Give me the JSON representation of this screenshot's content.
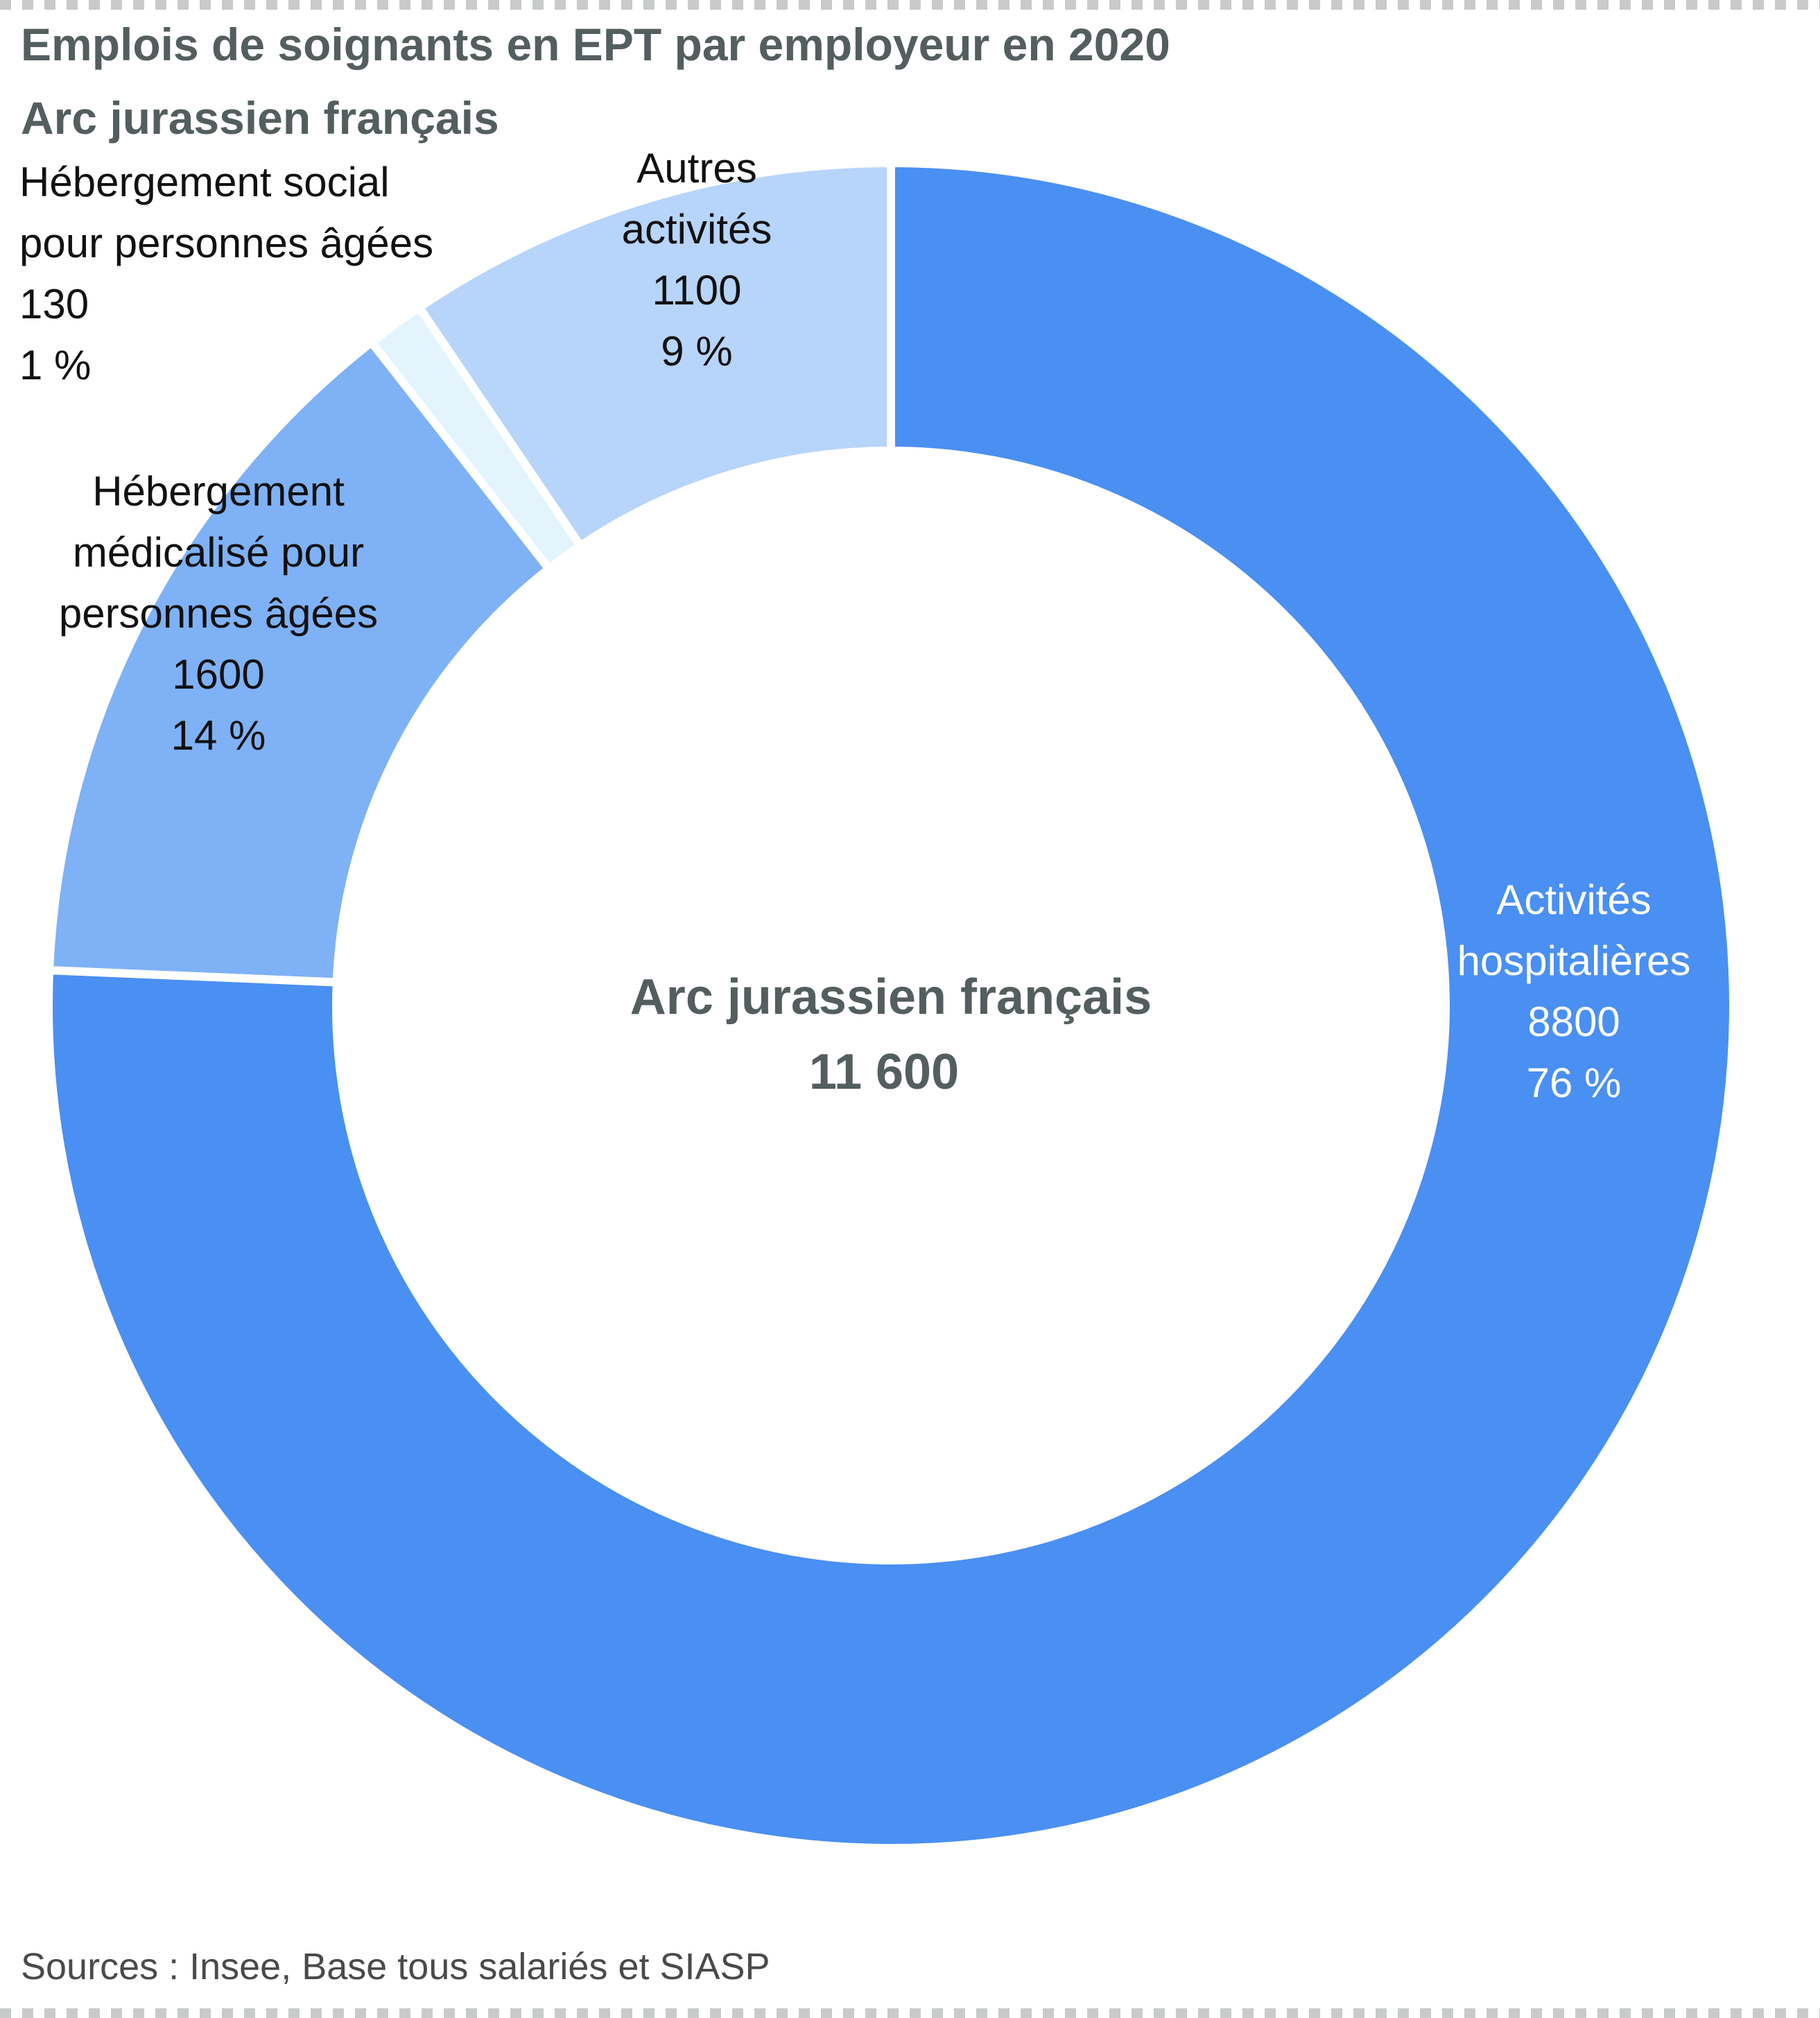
{
  "title_line1": "Emplois de soignants en EPT par employeur en 2020",
  "title_line2": "Arc jurassien français",
  "source": "Sources : Insee, Base tous salariés et SIASP",
  "center": {
    "label": "Arc jurassien français",
    "total": "11 600"
  },
  "colors": {
    "activites_hospitalieres": "#4a8ff2",
    "hebergement_medicalise": "#7fb1f6",
    "hebergement_social": "#e3f4fd",
    "autres_activites": "#b7d4fa",
    "separator": "#ffffff"
  },
  "chart_data": {
    "type": "pie",
    "donut": true,
    "title": "Emplois de soignants en EPT par employeur en 2020",
    "subtitle": "Arc jurassien français",
    "slices": [
      {
        "label_lines": [
          "Autres",
          "activités"
        ],
        "value": 1100,
        "value_text": "1100",
        "percent": 9,
        "percent_text": "9 %"
      },
      {
        "label_lines": [
          "Hébergement social",
          "pour personnes âgées"
        ],
        "value": 130,
        "value_text": "130",
        "percent": 1,
        "percent_text": "1 %"
      },
      {
        "label_lines": [
          "Hébergement",
          "médicalisé pour",
          "personnes âgées"
        ],
        "value": 1600,
        "value_text": "1600",
        "percent": 14,
        "percent_text": "14 %"
      },
      {
        "label_lines": [
          "Activités",
          "hospitalières"
        ],
        "value": 8800,
        "value_text": "8800",
        "percent": 76,
        "percent_text": "76 %"
      }
    ],
    "total": 11600
  }
}
